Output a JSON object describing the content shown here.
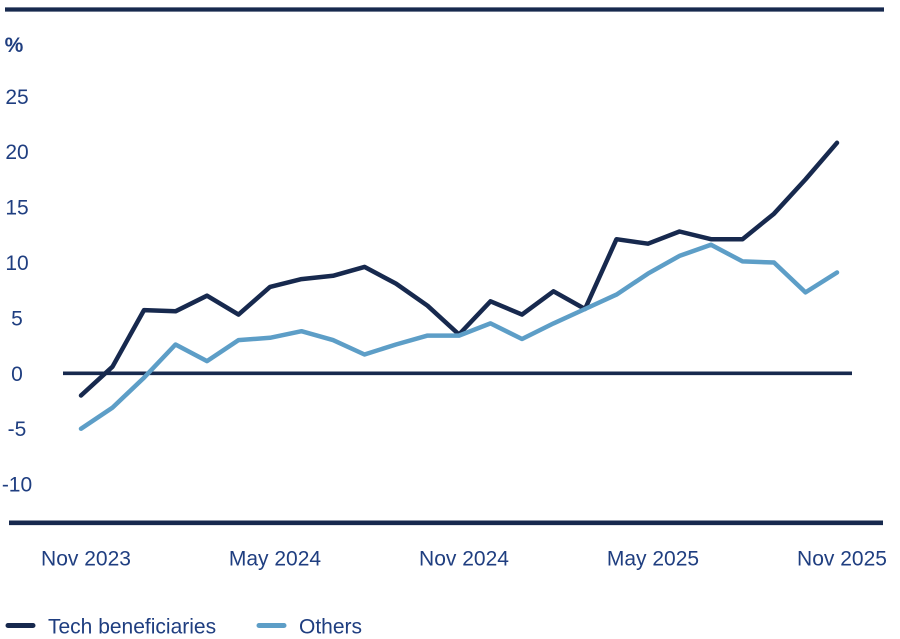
{
  "colors": {
    "background": "#ffffff",
    "axis": "#17294e",
    "text": "#1f3e80",
    "series_dark": "#17294e",
    "series_light": "#5d9ec7"
  },
  "chart_data": {
    "type": "line",
    "title": "",
    "unit_label": "%",
    "xlabel": "",
    "ylabel": "%",
    "x_categories": [
      "Nov 2023",
      "Dec 2023",
      "Jan 2024",
      "Feb 2024",
      "Mar 2024",
      "Apr 2024",
      "May 2024",
      "Jun 2024",
      "Jul 2024",
      "Aug 2024",
      "Sep 2024",
      "Oct 2024",
      "Nov 2024",
      "Dec 2024",
      "Jan 2025",
      "Feb 2025",
      "Mar 2025",
      "Apr 2025",
      "May 2025",
      "Jun 2025",
      "Jul 2025",
      "Aug 2025",
      "Sep 2025",
      "Oct 2025",
      "Nov 2025"
    ],
    "x_tick_labels": [
      {
        "index": 0,
        "label": "Nov 2023"
      },
      {
        "index": 6,
        "label": "May 2024"
      },
      {
        "index": 12,
        "label": "Nov 2024"
      },
      {
        "index": 18,
        "label": "May 2025"
      },
      {
        "index": 24,
        "label": "Nov 2025"
      }
    ],
    "y_ticks": [
      25,
      20,
      15,
      10,
      5,
      0,
      -5,
      -10
    ],
    "ylim": [
      -13,
      27
    ],
    "grid": false,
    "zero_line": true,
    "legend_position": "bottom-left",
    "series": [
      {
        "name": "Tech beneficiaries",
        "color": "#17294e",
        "values": [
          -2.0,
          0.6,
          5.7,
          5.6,
          7.0,
          5.3,
          7.8,
          8.5,
          8.8,
          9.6,
          8.1,
          6.1,
          3.5,
          6.5,
          5.3,
          7.4,
          5.8,
          12.1,
          11.7,
          12.8,
          12.1,
          12.1,
          14.4,
          17.5,
          20.8
        ]
      },
      {
        "name": "Others",
        "color": "#5d9ec7",
        "values": [
          -5.0,
          -3.1,
          -0.4,
          2.6,
          1.1,
          3.0,
          3.2,
          3.8,
          3.0,
          1.7,
          2.6,
          3.4,
          3.4,
          4.5,
          3.1,
          4.5,
          5.8,
          7.1,
          9.0,
          10.6,
          11.6,
          10.1,
          10.0,
          7.3,
          9.1
        ]
      }
    ]
  }
}
